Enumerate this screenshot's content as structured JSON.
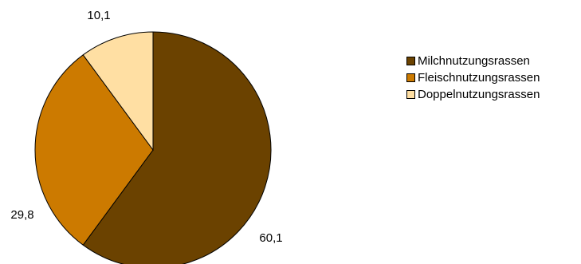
{
  "chart_data": {
    "type": "pie",
    "title": "",
    "categories": [
      "Milchnutzungsrassen",
      "Fleischnutzungsrassen",
      "Doppelnutzungsrassen"
    ],
    "values": [
      60.1,
      29.8,
      10.1
    ],
    "value_labels": [
      "60,1",
      "29,8",
      "10,1"
    ],
    "colors": [
      "#6b4200",
      "#cc7a00",
      "#ffdfa3"
    ],
    "start_angle_deg": 0,
    "direction": "clockwise",
    "legend": {
      "placement": "right",
      "items": [
        "Milchnutzungsrassen",
        "Fleischnutzungsrassen",
        "Doppelnutzungsrassen"
      ]
    }
  }
}
